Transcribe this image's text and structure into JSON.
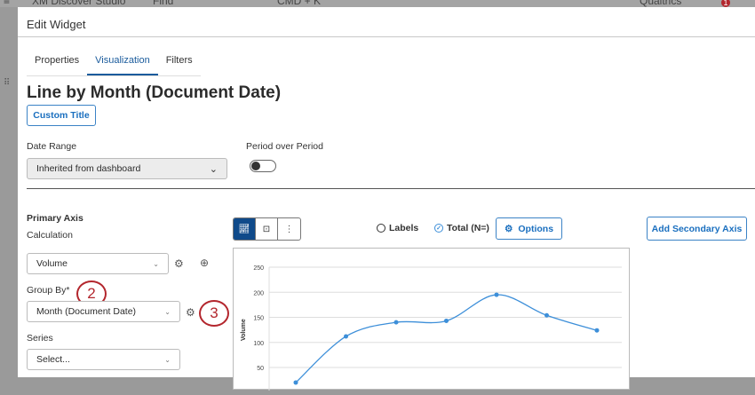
{
  "background": {
    "app_title": "XM Discover Studio",
    "find": "Find",
    "shortcut": "CMD + K",
    "account": "Qualtrics",
    "notifications": "1"
  },
  "modal": {
    "title": "Edit Widget",
    "tabs": [
      {
        "label": "Properties"
      },
      {
        "label": "Visualization",
        "active": true
      },
      {
        "label": "Filters"
      }
    ],
    "widget_title": "Line by Month (Document Date)",
    "custom_title_btn": "Custom Title",
    "date_range": {
      "label": "Date Range",
      "value": "Inherited from dashboard"
    },
    "period_over_period": {
      "label": "Period over Period",
      "on": false
    },
    "primary_axis": {
      "heading": "Primary Axis",
      "calculation_label": "Calculation",
      "calculation_value": "Volume",
      "group_by_label": "Group By*",
      "group_by_value": "Month (Document Date)",
      "series_label": "Series",
      "series_value": "Select..."
    },
    "annotations": [
      "2",
      "3"
    ],
    "toolbar": {
      "labels": "Labels",
      "total": "Total (N=)",
      "options": "Options",
      "add_secondary": "Add Secondary Axis"
    }
  },
  "colors": {
    "accent": "#1a6fbf",
    "line": "#3d8fd9",
    "annotation": "#b3262d"
  },
  "chart_data": {
    "type": "line",
    "ylabel": "Volume",
    "yticks": [
      50,
      100,
      150,
      200,
      250
    ],
    "ylim": [
      0,
      250
    ],
    "grid": true,
    "smooth": true,
    "values": [
      20,
      112,
      140,
      143,
      195,
      154,
      124
    ]
  }
}
